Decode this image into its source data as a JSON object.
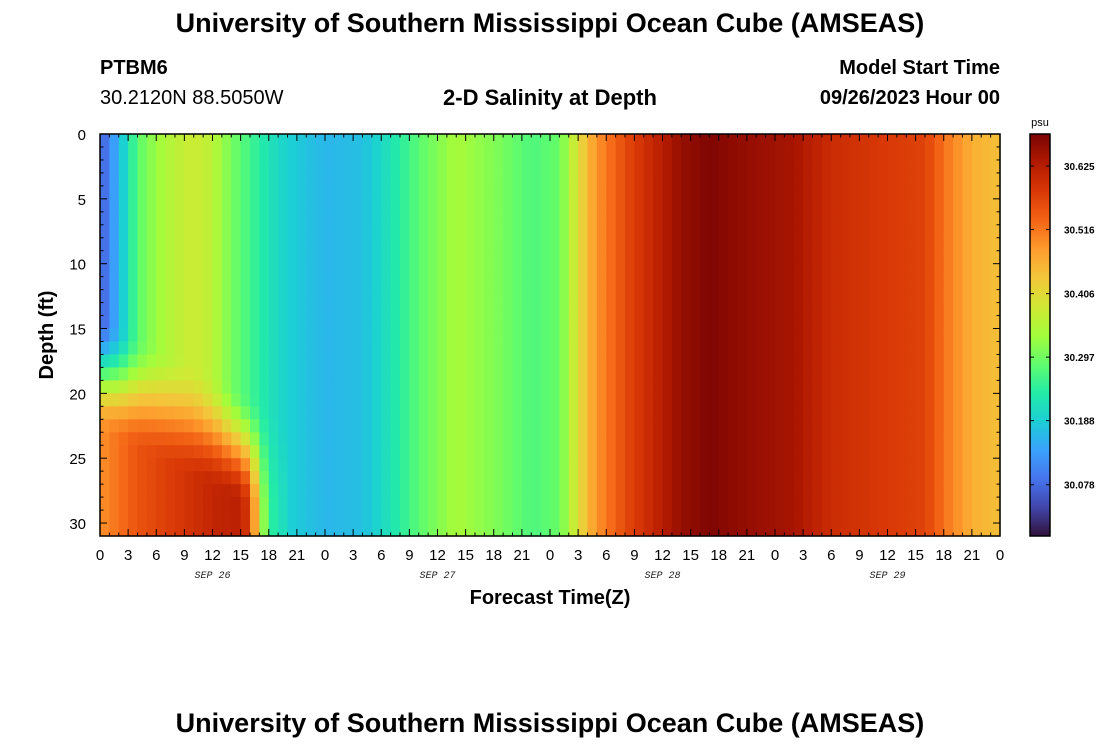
{
  "header": {
    "title": "University of Southern Mississippi Ocean Cube (AMSEAS)",
    "station_id": "PTBM6",
    "coordinates": "30.2120N  88.5050W",
    "plot_title": "2-D Salinity at Depth",
    "model_start_label": "Model Start Time",
    "model_start_value": "09/26/2023 Hour 00"
  },
  "footer": {
    "title": "University of Southern Mississippi Ocean Cube (AMSEAS)"
  },
  "chart_data": {
    "type": "heatmap",
    "xlabel": "Forecast Time(Z)",
    "ylabel": "Depth (ft)",
    "xlim": [
      0,
      96
    ],
    "ylim": [
      31,
      0
    ],
    "x_tick_labels": [
      "0",
      "3",
      "6",
      "9",
      "12",
      "15",
      "18",
      "21",
      "0",
      "3",
      "6",
      "9",
      "12",
      "15",
      "18",
      "21",
      "0",
      "3",
      "6",
      "9",
      "12",
      "15",
      "18",
      "21",
      "0",
      "3",
      "6",
      "9",
      "12",
      "15",
      "18",
      "21",
      "0"
    ],
    "y_ticks": [
      0,
      5,
      10,
      15,
      20,
      25,
      30
    ],
    "date_labels": [
      {
        "label": "SEP 26",
        "hour": 12
      },
      {
        "label": "SEP 27",
        "hour": 36
      },
      {
        "label": "SEP 28",
        "hour": 60
      },
      {
        "label": "SEP 29",
        "hour": 84
      }
    ],
    "colorbar": {
      "unit": "psu",
      "min": 29.99,
      "max": 30.68,
      "tick_labels": [
        "30.625",
        "30.516",
        "30.406",
        "30.297",
        "30.188",
        "30.078"
      ],
      "tick_values": [
        30.625,
        30.516,
        30.406,
        30.297,
        30.188,
        30.078
      ],
      "colors": [
        "#30123b",
        "#4145ab",
        "#4675ed",
        "#39a2fc",
        "#1bcfd4",
        "#24eca6",
        "#61fc6c",
        "#a4fc3b",
        "#d1e834",
        "#f3c63a",
        "#fe9b2d",
        "#f36315",
        "#d93806",
        "#b11901",
        "#7a0403"
      ]
    },
    "surface_salinity_by_hour": [
      {
        "hour": 0,
        "value": 30.06
      },
      {
        "hour": 2,
        "value": 30.16
      },
      {
        "hour": 4,
        "value": 30.28
      },
      {
        "hour": 6,
        "value": 30.33
      },
      {
        "hour": 8,
        "value": 30.36
      },
      {
        "hour": 10,
        "value": 30.38
      },
      {
        "hour": 12,
        "value": 30.36
      },
      {
        "hour": 14,
        "value": 30.3
      },
      {
        "hour": 16,
        "value": 30.26
      },
      {
        "hour": 18,
        "value": 30.22
      },
      {
        "hour": 20,
        "value": 30.19
      },
      {
        "hour": 24,
        "value": 30.16
      },
      {
        "hour": 28,
        "value": 30.17
      },
      {
        "hour": 31,
        "value": 30.22
      },
      {
        "hour": 34,
        "value": 30.28
      },
      {
        "hour": 38,
        "value": 30.34
      },
      {
        "hour": 42,
        "value": 30.31
      },
      {
        "hour": 46,
        "value": 30.27
      },
      {
        "hour": 49,
        "value": 30.29
      },
      {
        "hour": 51,
        "value": 30.4
      },
      {
        "hour": 53,
        "value": 30.49
      },
      {
        "hour": 56,
        "value": 30.56
      },
      {
        "hour": 59,
        "value": 30.61
      },
      {
        "hour": 62,
        "value": 30.655
      },
      {
        "hour": 65,
        "value": 30.675
      },
      {
        "hour": 68,
        "value": 30.66
      },
      {
        "hour": 71,
        "value": 30.65
      },
      {
        "hour": 74,
        "value": 30.64
      },
      {
        "hour": 78,
        "value": 30.6
      },
      {
        "hour": 84,
        "value": 30.58
      },
      {
        "hour": 88,
        "value": 30.57
      },
      {
        "hour": 90,
        "value": 30.52
      },
      {
        "hour": 93,
        "value": 30.46
      },
      {
        "hour": 96,
        "value": 30.44
      }
    ],
    "bottom_salinity_by_hour": [
      {
        "hour": 0,
        "value": 30.49
      },
      {
        "hour": 4,
        "value": 30.55
      },
      {
        "hour": 8,
        "value": 30.58
      },
      {
        "hour": 12,
        "value": 30.61
      },
      {
        "hour": 15,
        "value": 30.62
      },
      {
        "hour": 16,
        "value": 30.57
      },
      {
        "hour": 17,
        "value": 30.38
      },
      {
        "hour": 18,
        "value": 30.25
      },
      {
        "hour": 20,
        "value": 30.2
      }
    ]
  }
}
